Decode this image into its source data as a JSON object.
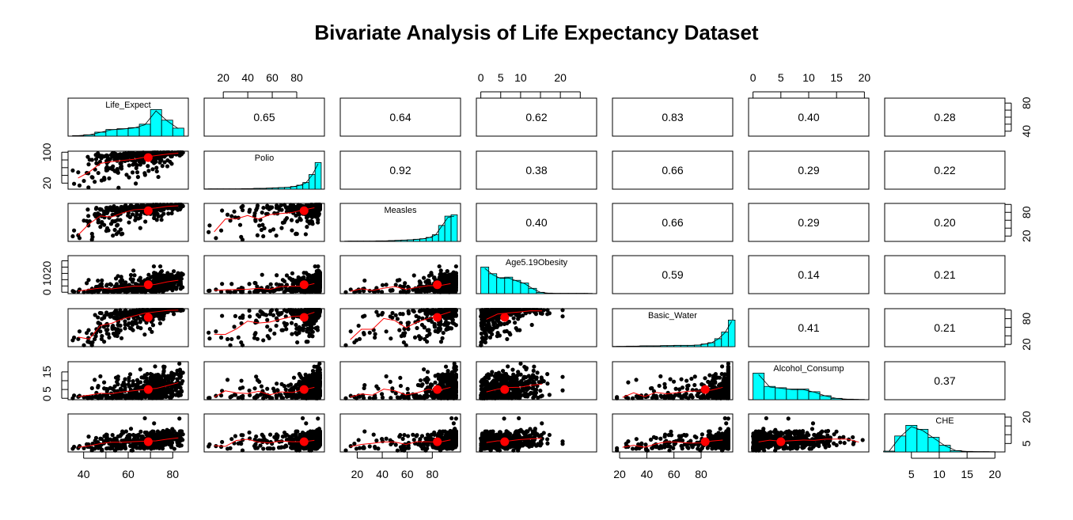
{
  "chart_data": {
    "type": "scatter-matrix",
    "title": "Bivariate Analysis of Life Expectancy Dataset",
    "variables": [
      "Life_Expect",
      "Polio",
      "Measles",
      "Age5.19Obesity",
      "Basic_Water",
      "Alcohol_Consump",
      "CHE"
    ],
    "ranges": [
      [
        35,
        85
      ],
      [
        8,
        99
      ],
      [
        10,
        99
      ],
      [
        0,
        28
      ],
      [
        18,
        100
      ],
      [
        0,
        20
      ],
      [
        1,
        21
      ]
    ],
    "means": [
      69,
      86,
      84,
      6,
      83,
      5,
      6
    ],
    "correlations": [
      [
        null,
        0.65,
        0.64,
        0.62,
        0.83,
        0.4,
        0.28
      ],
      [
        null,
        null,
        0.92,
        0.38,
        0.66,
        0.29,
        0.22
      ],
      [
        null,
        null,
        null,
        0.4,
        0.66,
        0.29,
        0.2
      ],
      [
        null,
        null,
        null,
        null,
        0.59,
        0.14,
        0.21
      ],
      [
        null,
        null,
        null,
        null,
        null,
        0.41,
        0.21
      ],
      [
        null,
        null,
        null,
        null,
        null,
        null,
        0.37
      ],
      [
        null,
        null,
        null,
        null,
        null,
        null,
        null
      ]
    ],
    "correlation_labels": [
      [
        "0.65",
        "0.64",
        "0.62",
        "0.83",
        "0.40",
        "0.28"
      ],
      [
        "0.92",
        "0.38",
        "0.66",
        "0.29",
        "0.22"
      ],
      [
        "0.40",
        "0.66",
        "0.29",
        "0.20"
      ],
      [
        "0.59",
        "0.14",
        "0.21"
      ],
      [
        "0.41",
        "0.21"
      ],
      [
        "0.37"
      ]
    ],
    "histograms": [
      {
        "start": 35,
        "width": 5,
        "counts": [
          0.02,
          0.05,
          0.15,
          0.25,
          0.28,
          0.32,
          0.45,
          1.0,
          0.6,
          0.3
        ]
      },
      {
        "start": 5,
        "width": 5,
        "counts": [
          0.01,
          0.01,
          0.01,
          0.01,
          0.01,
          0.01,
          0.02,
          0.02,
          0.03,
          0.03,
          0.04,
          0.05,
          0.06,
          0.07,
          0.1,
          0.15,
          0.25,
          0.55,
          1.0
        ]
      },
      {
        "start": 10,
        "width": 5,
        "counts": [
          0.01,
          0.01,
          0.01,
          0.01,
          0.01,
          0.02,
          0.02,
          0.03,
          0.04,
          0.05,
          0.06,
          0.08,
          0.1,
          0.15,
          0.25,
          0.6,
          0.95,
          1.0
        ]
      },
      {
        "start": 0,
        "width": 2,
        "counts": [
          1.0,
          0.75,
          0.6,
          0.62,
          0.5,
          0.4,
          0.2,
          0.05,
          0.02,
          0.01,
          0.01,
          0.01,
          0.01,
          0.01
        ]
      },
      {
        "start": 15,
        "width": 5,
        "counts": [
          0.01,
          0.01,
          0.02,
          0.02,
          0.03,
          0.03,
          0.03,
          0.04,
          0.04,
          0.05,
          0.05,
          0.05,
          0.06,
          0.1,
          0.15,
          0.3,
          0.55,
          1.0
        ]
      },
      {
        "start": 0,
        "width": 2,
        "counts": [
          1.0,
          0.5,
          0.45,
          0.4,
          0.4,
          0.3,
          0.15,
          0.05,
          0.02,
          0.01
        ]
      },
      {
        "start": 0,
        "width": 2,
        "counts": [
          0.03,
          0.6,
          1.0,
          0.85,
          0.55,
          0.25,
          0.05,
          0.02,
          0.01,
          0.01
        ]
      }
    ],
    "axes": {
      "top": [
        {
          "col": 1,
          "ticks": [
            20,
            40,
            60,
            80
          ],
          "labels": [
            "20",
            "40",
            "60",
            "80"
          ]
        },
        {
          "col": 3,
          "ticks": [
            0,
            5,
            10,
            15,
            20,
            25
          ],
          "labels": [
            "0",
            "5",
            "10",
            "",
            "20",
            ""
          ]
        },
        {
          "col": 5,
          "ticks": [
            0,
            5,
            10,
            15,
            20
          ],
          "labels": [
            "0",
            "5",
            "10",
            "15",
            "20"
          ]
        }
      ],
      "bottom": [
        {
          "col": 0,
          "ticks": [
            40,
            50,
            60,
            70,
            80
          ],
          "labels": [
            "40",
            "",
            "60",
            "",
            "80"
          ]
        },
        {
          "col": 2,
          "ticks": [
            20,
            40,
            60,
            80
          ],
          "labels": [
            "20",
            "40",
            "60",
            "80"
          ]
        },
        {
          "col": 4,
          "ticks": [
            20,
            40,
            60,
            80
          ],
          "labels": [
            "20",
            "40",
            "60",
            "80"
          ]
        },
        {
          "col": 6,
          "ticks": [
            5,
            10,
            15,
            20
          ],
          "labels": [
            "5",
            "10",
            "15",
            "20"
          ]
        }
      ],
      "left": [
        {
          "row": 1,
          "ticks": [
            20,
            40,
            60,
            80,
            100
          ],
          "labels": [
            "20",
            "",
            "",
            "",
            "100"
          ]
        },
        {
          "row": 3,
          "ticks": [
            0,
            5,
            10,
            15,
            20,
            25
          ],
          "labels": [
            "0",
            "",
            "10",
            "",
            "20",
            ""
          ]
        },
        {
          "row": 5,
          "ticks": [
            0,
            5,
            10,
            15
          ],
          "labels": [
            "0",
            "5",
            "",
            "15"
          ]
        }
      ],
      "right": [
        {
          "row": 0,
          "ticks": [
            40,
            50,
            60,
            70,
            80
          ],
          "labels": [
            "40",
            "",
            "",
            "",
            "80"
          ]
        },
        {
          "row": 2,
          "ticks": [
            20,
            40,
            60,
            80,
            100
          ],
          "labels": [
            "20",
            "",
            "",
            "80",
            ""
          ]
        },
        {
          "row": 4,
          "ticks": [
            20,
            40,
            60,
            80,
            100
          ],
          "labels": [
            "20",
            "",
            "",
            "80",
            ""
          ]
        },
        {
          "row": 6,
          "ticks": [
            5,
            10,
            15,
            20
          ],
          "labels": [
            "5",
            "",
            "",
            "20"
          ]
        }
      ]
    },
    "colors": {
      "histogram_fill": "#00FFFF",
      "points": "#000000",
      "smoother": "#FF0000",
      "mean_point": "#FF0000"
    }
  }
}
